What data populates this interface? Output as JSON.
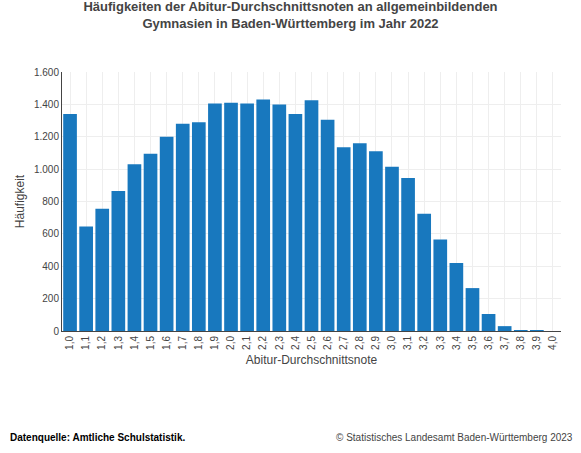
{
  "chart_data": {
    "type": "bar",
    "title": "Häufigkeiten der Abitur-Durchschnittsnoten an allgemeinbildenden\nGymnasien in Baden-Württemberg im Jahr 2022",
    "ylabel": "Häufigkeit",
    "xlabel": "Abitur-Durchschnittsnote",
    "annotations": [
      "Datenquelle: Amtliche Schulstatistik.",
      "© Statistisches Landesamt Baden-Württemberg 2023"
    ],
    "categories": [
      "1,0",
      "1,1",
      "1,2",
      "1,3",
      "1,4",
      "1,5",
      "1,6",
      "1,7",
      "1,8",
      "1,9",
      "2,0",
      "2,1",
      "2,2",
      "2,3",
      "2,4",
      "2,5",
      "2,6",
      "2,7",
      "2,8",
      "2,9",
      "3,0",
      "3,1",
      "3,2",
      "3,3",
      "3,4",
      "3,5",
      "3,6",
      "3,7",
      "3,8",
      "3,9",
      "4,0"
    ],
    "values": [
      1340,
      645,
      755,
      865,
      1030,
      1095,
      1200,
      1280,
      1290,
      1405,
      1410,
      1405,
      1430,
      1400,
      1340,
      1425,
      1305,
      1135,
      1160,
      1110,
      1015,
      945,
      725,
      565,
      420,
      265,
      105,
      30,
      5,
      2,
      0
    ],
    "color": "#1878be",
    "ylim": [
      0,
      1600
    ],
    "yticks": [
      0,
      200,
      400,
      600,
      800,
      {
        "value": 1000,
        "label": "1.000"
      },
      {
        "value": 1200,
        "label": "1.200"
      },
      {
        "value": 1400,
        "label": "1.400"
      },
      {
        "value": 1600,
        "label": "1.600"
      }
    ],
    "grid": true
  }
}
